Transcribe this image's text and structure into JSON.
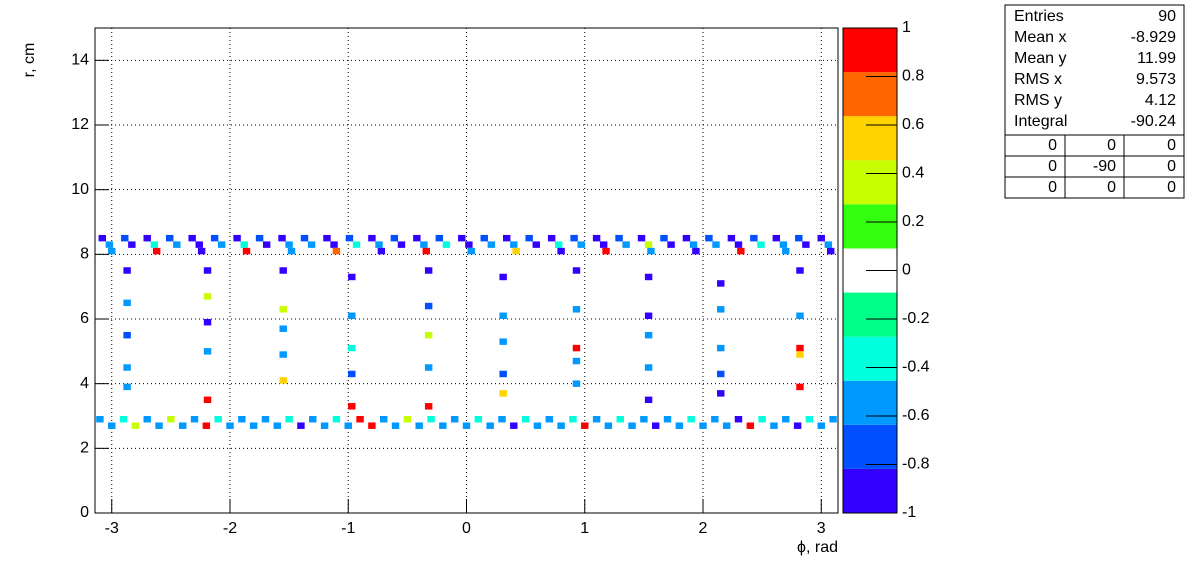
{
  "chart_data": {
    "type": "heatmap",
    "x_label": "ϕ, rad",
    "y_label": "r, cm",
    "xlim": [
      -3.1416,
      3.1416
    ],
    "xticks": [
      -3,
      -2,
      -1,
      0,
      1,
      2,
      3
    ],
    "ylim": [
      0,
      15
    ],
    "yticks": [
      0,
      2,
      4,
      6,
      8,
      10,
      12,
      14
    ],
    "grid": true,
    "zlim": [
      -1,
      1
    ],
    "zticks": [
      -1,
      -0.8,
      -0.6,
      -0.4,
      -0.2,
      0,
      0.2,
      0.4,
      0.6,
      0.8,
      1
    ],
    "palette": [
      "#3300ff",
      "#0050ff",
      "#0099ff",
      "#00ffdd",
      "#00ff88",
      "#ffffff",
      "#33ff11",
      "#c8ff00",
      "#ffd200",
      "#ff6600",
      "#ff0000"
    ],
    "cells": [
      [
        -3.08,
        8.5,
        -0.95
      ],
      [
        -2.89,
        8.5,
        -0.8
      ],
      [
        -2.7,
        8.5,
        -0.95
      ],
      [
        -2.51,
        8.5,
        -0.8
      ],
      [
        -2.32,
        8.5,
        -0.95
      ],
      [
        -2.13,
        8.5,
        -0.8
      ],
      [
        -1.94,
        8.5,
        -0.95
      ],
      [
        -1.75,
        8.5,
        -0.8
      ],
      [
        -1.56,
        8.5,
        -0.95
      ],
      [
        -1.37,
        8.5,
        -0.8
      ],
      [
        -1.18,
        8.5,
        -0.95
      ],
      [
        -0.99,
        8.5,
        -0.8
      ],
      [
        -0.8,
        8.5,
        -0.95
      ],
      [
        -0.61,
        8.5,
        -0.8
      ],
      [
        -0.42,
        8.5,
        -0.95
      ],
      [
        -0.23,
        8.5,
        -0.8
      ],
      [
        -0.04,
        8.5,
        -0.95
      ],
      [
        0.15,
        8.5,
        -0.8
      ],
      [
        0.34,
        8.5,
        -0.95
      ],
      [
        0.53,
        8.5,
        -0.8
      ],
      [
        0.72,
        8.5,
        -0.95
      ],
      [
        0.91,
        8.5,
        -0.8
      ],
      [
        1.1,
        8.5,
        -0.95
      ],
      [
        1.29,
        8.5,
        -0.8
      ],
      [
        1.48,
        8.5,
        -0.95
      ],
      [
        1.67,
        8.5,
        -0.8
      ],
      [
        1.86,
        8.5,
        -0.95
      ],
      [
        2.05,
        8.5,
        -0.8
      ],
      [
        2.24,
        8.5,
        -0.95
      ],
      [
        2.43,
        8.5,
        -0.8
      ],
      [
        2.62,
        8.5,
        -0.95
      ],
      [
        2.81,
        8.5,
        -0.8
      ],
      [
        3.0,
        8.5,
        -0.95
      ],
      [
        -3.02,
        8.3,
        -0.5
      ],
      [
        -2.83,
        8.3,
        -0.85
      ],
      [
        -2.64,
        8.3,
        -0.35
      ],
      [
        -2.45,
        8.3,
        -0.6
      ],
      [
        -2.26,
        8.3,
        -0.85
      ],
      [
        -2.07,
        8.3,
        -0.5
      ],
      [
        -1.88,
        8.3,
        -0.35
      ],
      [
        -1.69,
        8.3,
        -0.85
      ],
      [
        -1.5,
        8.3,
        -0.6
      ],
      [
        -1.31,
        8.3,
        -0.5
      ],
      [
        -1.12,
        8.3,
        -0.85
      ],
      [
        -0.93,
        8.3,
        -0.35
      ],
      [
        -0.74,
        8.3,
        -0.6
      ],
      [
        -0.55,
        8.3,
        -0.85
      ],
      [
        -0.36,
        8.3,
        -0.5
      ],
      [
        -0.17,
        8.3,
        -0.35
      ],
      [
        0.02,
        8.3,
        -0.85
      ],
      [
        0.21,
        8.3,
        -0.6
      ],
      [
        0.4,
        8.3,
        -0.5
      ],
      [
        0.59,
        8.3,
        -0.85
      ],
      [
        0.78,
        8.3,
        -0.35
      ],
      [
        0.97,
        8.3,
        -0.6
      ],
      [
        1.16,
        8.3,
        -0.85
      ],
      [
        1.35,
        8.3,
        -0.5
      ],
      [
        1.54,
        8.3,
        0.3
      ],
      [
        1.73,
        8.3,
        -0.85
      ],
      [
        1.92,
        8.3,
        -0.6
      ],
      [
        2.11,
        8.3,
        -0.5
      ],
      [
        2.3,
        8.3,
        -0.85
      ],
      [
        2.49,
        8.3,
        -0.35
      ],
      [
        2.68,
        8.3,
        -0.6
      ],
      [
        2.87,
        8.3,
        -0.85
      ],
      [
        3.06,
        8.3,
        -0.5
      ],
      [
        -3.0,
        8.1,
        -0.6
      ],
      [
        -2.62,
        8.1,
        0.9
      ],
      [
        -2.24,
        8.1,
        -0.9
      ],
      [
        -1.86,
        8.1,
        0.9
      ],
      [
        -1.48,
        8.1,
        -0.6
      ],
      [
        -1.1,
        8.1,
        0.7
      ],
      [
        -0.72,
        8.1,
        -0.9
      ],
      [
        -0.34,
        8.1,
        0.9
      ],
      [
        0.04,
        8.1,
        -0.6
      ],
      [
        0.42,
        8.1,
        0.5
      ],
      [
        0.8,
        8.1,
        -0.9
      ],
      [
        1.18,
        8.1,
        0.9
      ],
      [
        1.56,
        8.1,
        -0.6
      ],
      [
        1.94,
        8.1,
        -0.9
      ],
      [
        2.32,
        8.1,
        0.9
      ],
      [
        2.7,
        8.1,
        -0.6
      ],
      [
        3.08,
        8.1,
        -0.9
      ],
      [
        -2.87,
        7.5,
        -0.9
      ],
      [
        -2.87,
        6.5,
        -0.6
      ],
      [
        -2.87,
        5.5,
        -0.7
      ],
      [
        -2.87,
        4.5,
        -0.6
      ],
      [
        -2.87,
        3.9,
        -0.5
      ],
      [
        -2.19,
        7.5,
        -0.9
      ],
      [
        -2.19,
        6.7,
        0.3
      ],
      [
        -2.19,
        5.9,
        -0.9
      ],
      [
        -2.19,
        5.0,
        -0.5
      ],
      [
        -2.19,
        3.5,
        0.9
      ],
      [
        -1.55,
        7.5,
        -0.9
      ],
      [
        -1.55,
        6.3,
        0.3
      ],
      [
        -1.55,
        5.7,
        -0.6
      ],
      [
        -1.55,
        4.9,
        -0.5
      ],
      [
        -1.55,
        4.1,
        0.6
      ],
      [
        -0.97,
        7.3,
        -0.9
      ],
      [
        -0.97,
        6.1,
        -0.6
      ],
      [
        -0.97,
        5.1,
        -0.4
      ],
      [
        -0.97,
        4.3,
        -0.7
      ],
      [
        -0.97,
        3.3,
        0.9
      ],
      [
        -0.32,
        7.5,
        -0.9
      ],
      [
        -0.32,
        6.4,
        -0.8
      ],
      [
        -0.32,
        5.5,
        0.4
      ],
      [
        -0.32,
        4.5,
        -0.6
      ],
      [
        -0.32,
        3.3,
        0.9
      ],
      [
        0.31,
        7.3,
        -0.9
      ],
      [
        0.31,
        6.1,
        -0.6
      ],
      [
        0.31,
        5.3,
        -0.5
      ],
      [
        0.31,
        4.3,
        -0.7
      ],
      [
        0.31,
        3.7,
        0.6
      ],
      [
        0.93,
        7.5,
        -0.9
      ],
      [
        0.93,
        6.3,
        -0.6
      ],
      [
        0.93,
        5.1,
        0.9
      ],
      [
        0.93,
        4.7,
        -0.5
      ],
      [
        0.93,
        4.0,
        -0.6
      ],
      [
        1.54,
        7.3,
        -0.9
      ],
      [
        1.54,
        6.1,
        -0.85
      ],
      [
        1.54,
        5.5,
        -0.5
      ],
      [
        1.54,
        4.5,
        -0.6
      ],
      [
        1.54,
        3.5,
        -0.9
      ],
      [
        2.15,
        7.1,
        -0.9
      ],
      [
        2.15,
        6.3,
        -0.6
      ],
      [
        2.15,
        5.1,
        -0.5
      ],
      [
        2.15,
        4.3,
        -0.7
      ],
      [
        2.15,
        3.7,
        -0.9
      ],
      [
        2.82,
        7.5,
        -0.9
      ],
      [
        2.82,
        6.1,
        -0.6
      ],
      [
        2.82,
        5.1,
        0.9
      ],
      [
        2.82,
        4.9,
        0.6
      ],
      [
        2.82,
        3.9,
        0.9
      ],
      [
        -3.1,
        2.9,
        -0.5
      ],
      [
        -2.9,
        2.9,
        -0.35
      ],
      [
        -2.7,
        2.9,
        -0.5
      ],
      [
        -2.5,
        2.9,
        0.3
      ],
      [
        -2.3,
        2.9,
        -0.5
      ],
      [
        -2.1,
        2.9,
        -0.35
      ],
      [
        -1.9,
        2.9,
        -0.5
      ],
      [
        -1.7,
        2.9,
        -0.6
      ],
      [
        -1.5,
        2.9,
        -0.35
      ],
      [
        -1.3,
        2.9,
        -0.5
      ],
      [
        -1.1,
        2.9,
        -0.35
      ],
      [
        -0.9,
        2.9,
        0.9
      ],
      [
        -0.7,
        2.9,
        -0.5
      ],
      [
        -0.5,
        2.9,
        0.3
      ],
      [
        -0.3,
        2.9,
        -0.35
      ],
      [
        -0.1,
        2.9,
        -0.5
      ],
      [
        0.1,
        2.9,
        -0.35
      ],
      [
        0.3,
        2.9,
        -0.5
      ],
      [
        0.5,
        2.9,
        -0.35
      ],
      [
        0.7,
        2.9,
        -0.5
      ],
      [
        0.9,
        2.9,
        -0.35
      ],
      [
        1.1,
        2.9,
        -0.5
      ],
      [
        1.3,
        2.9,
        -0.35
      ],
      [
        1.5,
        2.9,
        -0.5
      ],
      [
        1.7,
        2.9,
        -0.6
      ],
      [
        1.9,
        2.9,
        -0.35
      ],
      [
        2.1,
        2.9,
        -0.5
      ],
      [
        2.3,
        2.9,
        -0.85
      ],
      [
        2.5,
        2.9,
        -0.35
      ],
      [
        2.7,
        2.9,
        -0.5
      ],
      [
        2.9,
        2.9,
        -0.35
      ],
      [
        3.1,
        2.9,
        -0.5
      ],
      [
        -3.0,
        2.7,
        -0.6
      ],
      [
        -2.8,
        2.7,
        0.3
      ],
      [
        -2.6,
        2.7,
        -0.6
      ],
      [
        -2.4,
        2.7,
        -0.6
      ],
      [
        -2.2,
        2.7,
        0.9
      ],
      [
        -2.0,
        2.7,
        -0.5
      ],
      [
        -1.8,
        2.7,
        -0.6
      ],
      [
        -1.6,
        2.7,
        -0.5
      ],
      [
        -1.4,
        2.7,
        -0.85
      ],
      [
        -1.2,
        2.7,
        -0.6
      ],
      [
        -1.0,
        2.7,
        -0.5
      ],
      [
        -0.8,
        2.7,
        0.9
      ],
      [
        -0.6,
        2.7,
        -0.6
      ],
      [
        -0.4,
        2.7,
        -0.5
      ],
      [
        -0.2,
        2.7,
        -0.6
      ],
      [
        0.0,
        2.7,
        -0.5
      ],
      [
        0.2,
        2.7,
        -0.6
      ],
      [
        0.4,
        2.7,
        -0.85
      ],
      [
        0.6,
        2.7,
        -0.5
      ],
      [
        0.8,
        2.7,
        -0.6
      ],
      [
        1.0,
        2.7,
        0.9
      ],
      [
        1.2,
        2.7,
        -0.5
      ],
      [
        1.4,
        2.7,
        -0.6
      ],
      [
        1.6,
        2.7,
        -0.85
      ],
      [
        1.8,
        2.7,
        -0.6
      ],
      [
        2.0,
        2.7,
        -0.5
      ],
      [
        2.2,
        2.7,
        -0.6
      ],
      [
        2.4,
        2.7,
        0.9
      ],
      [
        2.6,
        2.7,
        -0.6
      ],
      [
        2.8,
        2.7,
        -0.9
      ],
      [
        3.0,
        2.7,
        -0.6
      ]
    ],
    "stats": [
      {
        "label": "Entries",
        "value": 90
      },
      {
        "label": "Mean x",
        "value": -8.929
      },
      {
        "label": "Mean y",
        "value": 11.99
      },
      {
        "label": "RMS x",
        "value": 9.573
      },
      {
        "label": "RMS y",
        "value": 4.12
      },
      {
        "label": "Integral",
        "value": -90.24
      }
    ],
    "stats_grid": [
      [
        0,
        0,
        0
      ],
      [
        0,
        -90,
        0
      ],
      [
        0,
        0,
        0
      ]
    ]
  }
}
